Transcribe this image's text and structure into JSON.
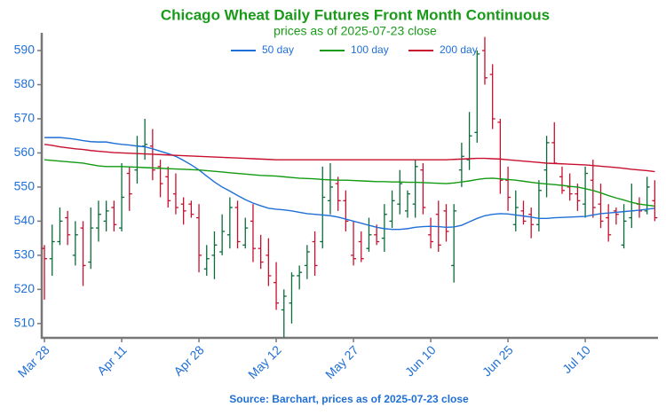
{
  "chart_data": {
    "type": "ohlc",
    "title": "Chicago Wheat Daily Futures Front Month Continuous",
    "subtitle": "prices as of 2025-07-23 close",
    "source": "Source: Barchart, prices as of 2025-07-23 close",
    "categories": [
      "Mar 28",
      null,
      null,
      null,
      null,
      null,
      null,
      null,
      null,
      null,
      "Apr 11",
      null,
      null,
      null,
      null,
      null,
      null,
      null,
      null,
      null,
      "Apr 28",
      null,
      null,
      null,
      null,
      null,
      null,
      null,
      null,
      null,
      "May 12",
      null,
      null,
      null,
      null,
      null,
      null,
      null,
      null,
      null,
      "May 27",
      null,
      null,
      null,
      null,
      null,
      null,
      null,
      null,
      null,
      "Jun 10",
      null,
      null,
      null,
      null,
      null,
      null,
      null,
      null,
      null,
      "Jun 25",
      null,
      null,
      null,
      null,
      null,
      null,
      null,
      null,
      null,
      "Jul 10",
      null,
      null,
      null,
      null,
      null,
      null,
      null,
      null,
      null
    ],
    "xlim": [
      -0.35,
      79.3
    ],
    "ylim": [
      505.8,
      595.2
    ],
    "yticks": [
      510,
      520,
      530,
      540,
      550,
      560,
      570,
      580,
      590
    ],
    "legend": "top",
    "ohlc": {
      "up_color": "#0b6b3a",
      "down_color": "#c8102e",
      "open": [
        532,
        529,
        534,
        541,
        530,
        538,
        528,
        538,
        540,
        544,
        538,
        554,
        555,
        562,
        562,
        556,
        553,
        548,
        545,
        545,
        541,
        526,
        530,
        531,
        536,
        544,
        533,
        540,
        532,
        530,
        522,
        514,
        516,
        524,
        527,
        534,
        534,
        546,
        551,
        546,
        530,
        534,
        532,
        536,
        535,
        540,
        545,
        543,
        545,
        555,
        536,
        542,
        543,
        527,
        555,
        558,
        566,
        590,
        583,
        569,
        552,
        539,
        543,
        542,
        539,
        555,
        563,
        553,
        550,
        548,
        545,
        552,
        545,
        541,
        543,
        533,
        541,
        545,
        543,
        546
      ],
      "high": [
        533,
        539,
        544,
        543,
        540,
        540,
        544,
        546,
        546,
        546,
        557,
        556,
        565,
        570,
        567,
        558,
        556,
        554,
        547,
        546,
        545,
        533,
        537,
        542,
        547,
        546,
        541,
        545,
        536,
        535,
        528,
        520,
        525,
        527,
        533,
        537,
        556,
        557,
        553,
        549,
        540,
        537,
        541,
        539,
        545,
        549,
        555,
        549,
        558,
        557,
        541,
        546,
        545,
        545,
        563,
        572,
        590,
        594,
        586,
        570,
        556,
        549,
        546,
        544,
        552,
        565,
        569,
        556,
        554,
        551,
        556,
        558,
        551,
        545,
        544,
        545,
        551,
        547,
        553,
        552
      ],
      "low": [
        517,
        524,
        533,
        533,
        527,
        521,
        526,
        534,
        537,
        537,
        537,
        543,
        551,
        558,
        552,
        547,
        544,
        542,
        539,
        541,
        525,
        524,
        523,
        530,
        532,
        532,
        532,
        528,
        526,
        521,
        514,
        506,
        510,
        520,
        523,
        524,
        532,
        542,
        543,
        537,
        527,
        528,
        531,
        533,
        531,
        538,
        542,
        541,
        541,
        542,
        532,
        531,
        534,
        522,
        550,
        555,
        563,
        580,
        567,
        548,
        543,
        537,
        539,
        535,
        537,
        547,
        557,
        548,
        546,
        543,
        541,
        541,
        538,
        534,
        539,
        532,
        538,
        541,
        542,
        540
      ],
      "close": [
        529,
        534,
        540,
        536,
        536,
        527,
        538,
        542,
        543,
        539,
        547,
        548,
        562,
        562.5,
        555,
        551,
        546,
        544,
        543,
        542,
        530,
        529,
        533,
        537,
        544,
        534,
        538,
        532,
        528,
        524,
        516,
        518,
        524,
        525,
        531,
        527,
        547,
        550,
        546,
        540,
        529,
        529,
        536,
        534,
        542,
        546,
        551,
        548,
        556,
        544,
        534,
        533,
        537,
        543,
        559,
        565,
        589,
        582,
        570,
        552,
        547,
        544,
        540,
        539,
        549,
        563,
        557,
        549,
        548,
        546,
        554,
        544,
        540,
        536,
        542,
        540,
        543,
        543,
        550,
        541
      ]
    },
    "series": [
      {
        "name": "50 day",
        "color": "#1f6fd6",
        "values": [
          564.5,
          564.5,
          564.5,
          564.3,
          564.0,
          563.6,
          563.3,
          563.2,
          563.2,
          562.8,
          562.5,
          562.3,
          562.0,
          561.8,
          561.2,
          560.5,
          559.8,
          559.0,
          557.8,
          556.5,
          555.0,
          553.2,
          551.5,
          550.0,
          548.8,
          547.5,
          546.3,
          545.3,
          544.5,
          543.8,
          543.5,
          543.3,
          543.0,
          542.6,
          542.2,
          542.0,
          541.8,
          541.6,
          541.2,
          540.6,
          540.0,
          539.4,
          538.8,
          538.2,
          537.8,
          537.6,
          537.6,
          537.8,
          538.2,
          538.4,
          538.5,
          538.4,
          538.2,
          538.3,
          538.8,
          539.8,
          540.8,
          541.6,
          542.0,
          542.2,
          542.1,
          541.8,
          541.5,
          541.2,
          540.8,
          540.8,
          541.0,
          541.1,
          541.2,
          541.3,
          541.4,
          541.8,
          542.2,
          542.4,
          542.6,
          542.8,
          543.0,
          543.2,
          543.5,
          543.8
        ]
      },
      {
        "name": "100 day",
        "color": "#129a12",
        "values": [
          558.0,
          557.8,
          557.6,
          557.4,
          557.2,
          557.0,
          556.6,
          556.2,
          556.0,
          556.0,
          556.0,
          555.9,
          555.8,
          555.7,
          555.6,
          555.5,
          555.4,
          555.3,
          555.2,
          555.1,
          555.0,
          554.8,
          554.6,
          554.4,
          554.2,
          554.0,
          553.8,
          553.6,
          553.4,
          553.3,
          553.2,
          553.0,
          552.8,
          552.6,
          552.5,
          552.4,
          552.2,
          552.1,
          552.0,
          552.0,
          551.9,
          551.8,
          551.7,
          551.6,
          551.6,
          551.5,
          551.5,
          551.4,
          551.4,
          551.3,
          551.2,
          551.1,
          551.0,
          551.2,
          551.5,
          551.8,
          552.2,
          552.5,
          552.6,
          552.4,
          552.2,
          552.0,
          551.7,
          551.4,
          551.1,
          550.9,
          550.7,
          550.5,
          550.2,
          550.0,
          549.5,
          549.0,
          548.3,
          547.5,
          546.8,
          546.2,
          545.5,
          545.0,
          544.7,
          544.4
        ]
      },
      {
        "name": "200 day",
        "color": "#c8102e",
        "values": [
          562.5,
          562.2,
          561.8,
          561.5,
          561.2,
          561.0,
          560.7,
          560.5,
          560.3,
          560.1,
          560.0,
          559.9,
          559.8,
          559.7,
          559.6,
          559.5,
          559.4,
          559.3,
          559.2,
          559.1,
          559.0,
          558.9,
          558.8,
          558.7,
          558.6,
          558.5,
          558.4,
          558.3,
          558.2,
          558.1,
          558.0,
          558.0,
          558.0,
          558.0,
          558.0,
          558.0,
          558.0,
          558.0,
          558.0,
          558.0,
          558.0,
          558.0,
          558.0,
          558.0,
          558.0,
          558.0,
          558.0,
          558.0,
          558.0,
          558.0,
          558.0,
          558.0,
          558.0,
          558.1,
          558.2,
          558.3,
          558.4,
          558.4,
          558.3,
          558.2,
          558.0,
          557.8,
          557.6,
          557.4,
          557.2,
          557.0,
          556.9,
          556.8,
          556.7,
          556.6,
          556.5,
          556.3,
          556.1,
          555.9,
          555.7,
          555.5,
          555.2,
          555.0,
          554.8,
          554.5
        ]
      }
    ]
  }
}
